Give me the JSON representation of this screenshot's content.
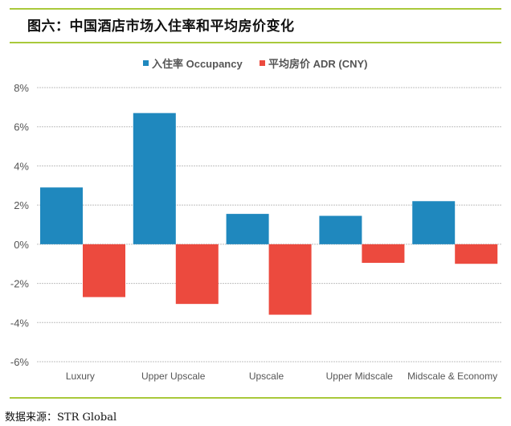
{
  "title": "图六：中国酒店市场入住率和平均房价变化",
  "source": "数据来源：STR Global",
  "chart_data": {
    "type": "bar",
    "title": "图六：中国酒店市场入住率和平均房价变化",
    "xlabel": "",
    "ylabel": "",
    "categories": [
      "Luxury",
      "Upper Upscale",
      "Upscale",
      "Upper Midscale",
      "Midscale & Economy"
    ],
    "series": [
      {
        "name": "入住率 Occupancy",
        "color": "#1f88be",
        "values": [
          2.9,
          6.7,
          1.55,
          1.45,
          2.2
        ]
      },
      {
        "name": "平均房价 ADR (CNY)",
        "color": "#ec4a3e",
        "values": [
          -2.7,
          -3.05,
          -3.6,
          -0.95,
          -1.0
        ]
      }
    ],
    "ylim": [
      -6,
      8
    ],
    "yticks": [
      8,
      6,
      4,
      2,
      0,
      -2,
      -4,
      -6
    ],
    "ytick_labels": [
      "8%",
      "6%",
      "4%",
      "2%",
      "0%",
      "-2%",
      "-4%",
      "-6%"
    ],
    "unit": "%",
    "grid": true,
    "legend": "top-center"
  }
}
